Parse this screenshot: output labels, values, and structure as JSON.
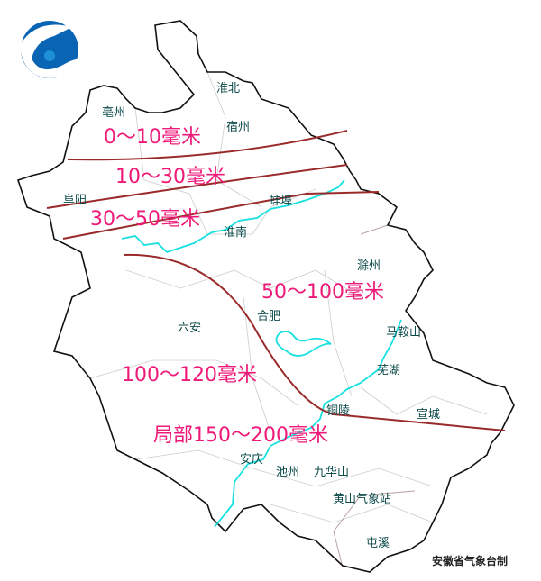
{
  "logo": {
    "name": "meteorological-logo",
    "colors": [
      "#0a64b4",
      "#1e90d6"
    ]
  },
  "cities": [
    {
      "name": "淮北"
    },
    {
      "name": "亳州"
    },
    {
      "name": "宿州"
    },
    {
      "name": "阜阳"
    },
    {
      "name": "淮南"
    },
    {
      "name": "蚌埠"
    },
    {
      "name": "滁州"
    },
    {
      "name": "合肥"
    },
    {
      "name": "六安"
    },
    {
      "name": "马鞍山"
    },
    {
      "name": "芜湖"
    },
    {
      "name": "铜陵"
    },
    {
      "name": "宣城"
    },
    {
      "name": "安庆"
    },
    {
      "name": "池州"
    },
    {
      "name": "九华山"
    },
    {
      "name": "黄山气象站"
    },
    {
      "name": "屯溪"
    }
  ],
  "rain_zones": [
    {
      "label": "0～10毫米"
    },
    {
      "label": "10～30毫米"
    },
    {
      "label": "30～50毫米"
    },
    {
      "label": "50～100毫米"
    },
    {
      "label": "100～120毫米"
    },
    {
      "label": "局部150～200毫米"
    }
  ],
  "credit": "安徽省气象台制",
  "colors": {
    "isoline": "#9a2a2a",
    "river": "#18e0e0",
    "label": "#ee1a78",
    "boundary": "#111111",
    "county": "#cccccc"
  }
}
